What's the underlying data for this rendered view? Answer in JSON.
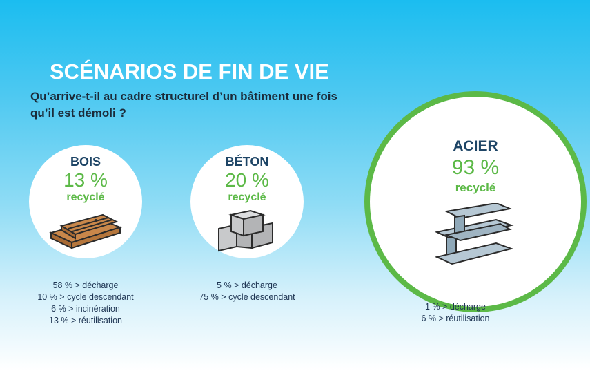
{
  "header": {
    "title": "SCÉNARIOS DE FIN DE VIE",
    "subtitle": "Qu’arrive-t-il au cadre structurel d’un bâtiment une fois qu’il est démoli ?"
  },
  "colors": {
    "accent": "#5cb947",
    "heading": "#1e4566",
    "background_top": "#1bbdf0"
  },
  "materials": [
    {
      "name": "BOIS",
      "percent": "13 %",
      "label": "recyclé",
      "icon": "wood-planks-icon",
      "outcomes": [
        "58 % > décharge",
        "10 % > cycle descendant",
        "6 % > incinération",
        "13 % > réutilisation"
      ]
    },
    {
      "name": "BÉTON",
      "percent": "20 %",
      "label": "recyclé",
      "icon": "concrete-blocks-icon",
      "outcomes": [
        "5 % > décharge",
        "75 % > cycle descendant"
      ]
    },
    {
      "name": "ACIER",
      "percent": "93 %",
      "label": "recyclé",
      "icon": "steel-beams-icon",
      "outcomes": [
        "1 % > décharge",
        "6 % > réutilisation"
      ]
    }
  ]
}
